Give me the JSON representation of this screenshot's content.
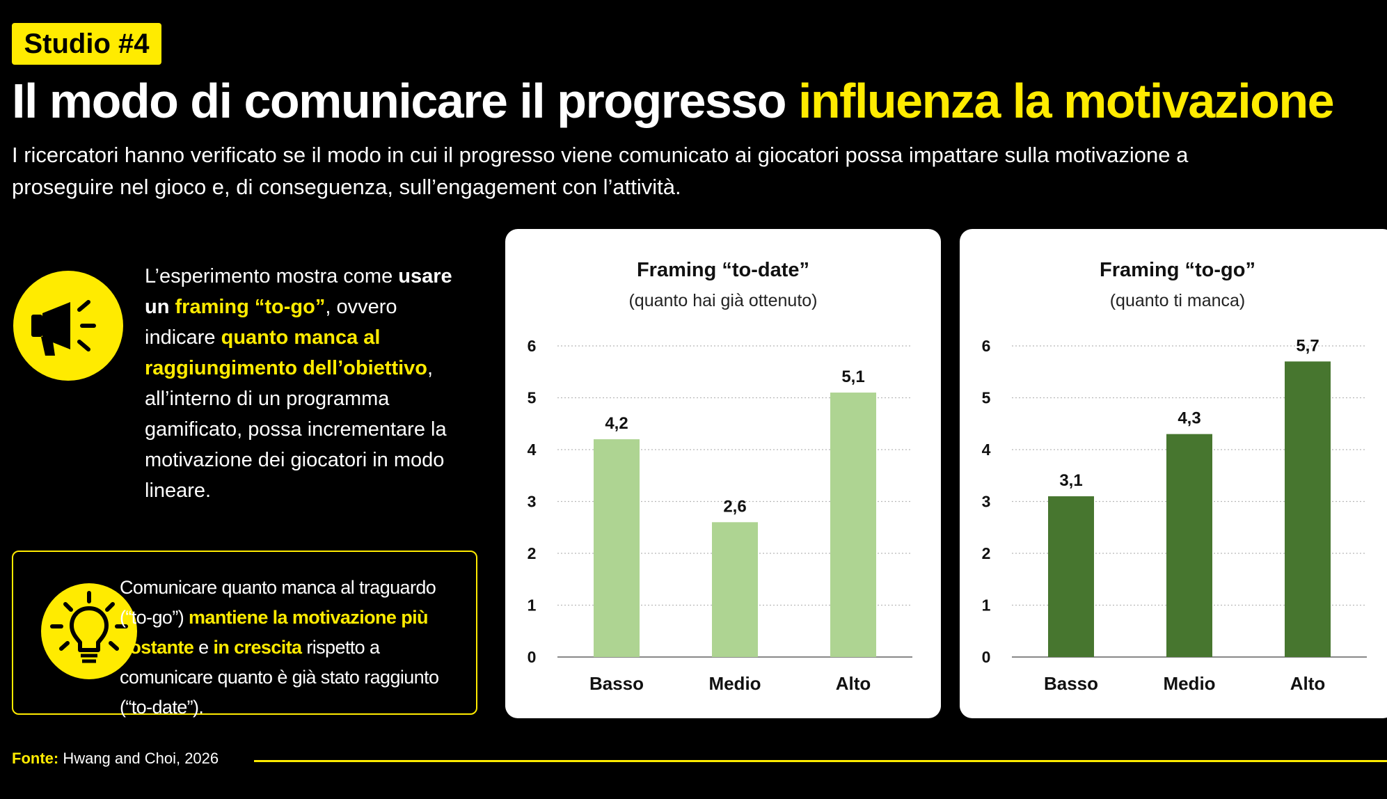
{
  "header": {
    "badge": "Studio #4",
    "title_part1": "Il modo di comunicare il progresso ",
    "title_part2": "influenza la motivazione",
    "subtitle": "I ricercatori hanno verificato se il modo in cui il progresso viene comunicato ai giocatori possa impattare sulla motivazione a proseguire nel gioco e, di conseguenza, sull’engagement con l’attività."
  },
  "experiment": {
    "icon": "megaphone-icon",
    "t1": "L’esperimento mostra come ",
    "t2": "usare un ",
    "t3": "framing “to-go”",
    "t4": ", ovvero indicare ",
    "t5": "quanto manca al raggiungimento dell’obiettivo",
    "t6": ", all’interno di un programma gamificato, possa incrementare la motivazione dei giocatori in modo lineare."
  },
  "insight": {
    "icon": "lightbulb-icon",
    "t1": "Comunicare quanto manca al traguardo (“to-go”) ",
    "t2": "mantiene la motivazione più costante",
    "t3": " e ",
    "t4": "in crescita",
    "t5": " rispetto a comunicare quanto è già stato raggiunto (“to-date”)."
  },
  "source": {
    "label": "Fonte:",
    "text": " Hwang and Choi, 2026"
  },
  "colors": {
    "accent": "#FFEB00",
    "to_date_bar": "#AED492",
    "to_go_bar": "#47762F"
  },
  "chart_data": [
    {
      "type": "bar",
      "title": "Framing “to-date”",
      "subtitle": "(quanto hai già ottenuto)",
      "categories": [
        "Basso",
        "Medio",
        "Alto"
      ],
      "values": [
        4.2,
        2.6,
        5.1
      ],
      "value_labels": [
        "4,2",
        "2,6",
        "5,1"
      ],
      "yticks": [
        "0",
        "1",
        "2",
        "3",
        "4",
        "5",
        "6"
      ],
      "ylim": [
        0,
        6
      ],
      "grid": true,
      "color": "#AED492"
    },
    {
      "type": "bar",
      "title": "Framing “to-go”",
      "subtitle": "(quanto ti manca)",
      "categories": [
        "Basso",
        "Medio",
        "Alto"
      ],
      "values": [
        3.1,
        4.3,
        5.7
      ],
      "value_labels": [
        "3,1",
        "4,3",
        "5,7"
      ],
      "yticks": [
        "0",
        "1",
        "2",
        "3",
        "4",
        "5",
        "6"
      ],
      "ylim": [
        0,
        6
      ],
      "grid": true,
      "color": "#47762F"
    }
  ]
}
